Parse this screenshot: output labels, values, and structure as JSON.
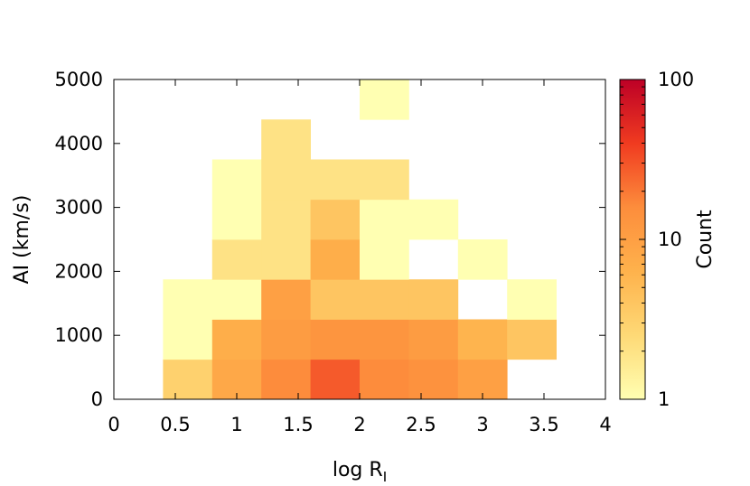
{
  "chart_data": {
    "type": "heatmap",
    "title": "",
    "xlabel_main": "log R",
    "xlabel_sub": "I",
    "ylabel": "AI (km/s)",
    "colorbar_label": "Count",
    "xlim": [
      0,
      4
    ],
    "ylim": [
      0,
      5000
    ],
    "x_ticks": [
      "0",
      "0.5",
      "1",
      "1.5",
      "2",
      "2.5",
      "3",
      "3.5",
      "4"
    ],
    "y_ticks": [
      "0",
      "1000",
      "2000",
      "3000",
      "4000",
      "5000"
    ],
    "colorbar_ticks": [
      "1",
      "10",
      "100"
    ],
    "color_scale": "log",
    "color_range": [
      1,
      100
    ],
    "colormap": [
      "#ffffb2",
      "#fed976",
      "#feb24c",
      "#fd8d3c",
      "#f03b20",
      "#bd0026"
    ],
    "bin_width_x": 0.4,
    "bin_height_y": 625,
    "bins": [
      {
        "x0": 0.4,
        "y0": 0,
        "count": 3
      },
      {
        "x0": 0.8,
        "y0": 0,
        "count": 8
      },
      {
        "x0": 1.2,
        "y0": 0,
        "count": 16
      },
      {
        "x0": 1.6,
        "y0": 0,
        "count": 28
      },
      {
        "x0": 2.0,
        "y0": 0,
        "count": 16
      },
      {
        "x0": 2.4,
        "y0": 0,
        "count": 14
      },
      {
        "x0": 2.8,
        "y0": 0,
        "count": 10
      },
      {
        "x0": 0.4,
        "y0": 625,
        "count": 1
      },
      {
        "x0": 0.8,
        "y0": 625,
        "count": 7
      },
      {
        "x0": 1.2,
        "y0": 625,
        "count": 11
      },
      {
        "x0": 1.6,
        "y0": 625,
        "count": 13
      },
      {
        "x0": 2.0,
        "y0": 625,
        "count": 13
      },
      {
        "x0": 2.4,
        "y0": 625,
        "count": 11
      },
      {
        "x0": 2.8,
        "y0": 625,
        "count": 6
      },
      {
        "x0": 3.2,
        "y0": 625,
        "count": 4
      },
      {
        "x0": 0.4,
        "y0": 1250,
        "count": 1
      },
      {
        "x0": 0.8,
        "y0": 1250,
        "count": 1
      },
      {
        "x0": 1.2,
        "y0": 1250,
        "count": 10
      },
      {
        "x0": 1.6,
        "y0": 1250,
        "count": 4
      },
      {
        "x0": 2.0,
        "y0": 1250,
        "count": 4
      },
      {
        "x0": 2.4,
        "y0": 1250,
        "count": 4
      },
      {
        "x0": 3.2,
        "y0": 1250,
        "count": 1
      },
      {
        "x0": 0.8,
        "y0": 1875,
        "count": 2
      },
      {
        "x0": 1.2,
        "y0": 1875,
        "count": 2
      },
      {
        "x0": 1.6,
        "y0": 1875,
        "count": 7
      },
      {
        "x0": 2.0,
        "y0": 1875,
        "count": 1
      },
      {
        "x0": 2.8,
        "y0": 1875,
        "count": 1
      },
      {
        "x0": 0.8,
        "y0": 2500,
        "count": 1
      },
      {
        "x0": 1.2,
        "y0": 2500,
        "count": 2
      },
      {
        "x0": 1.6,
        "y0": 2500,
        "count": 4
      },
      {
        "x0": 2.0,
        "y0": 2500,
        "count": 1
      },
      {
        "x0": 2.4,
        "y0": 2500,
        "count": 1
      },
      {
        "x0": 0.8,
        "y0": 3125,
        "count": 1
      },
      {
        "x0": 1.2,
        "y0": 3125,
        "count": 2
      },
      {
        "x0": 1.6,
        "y0": 3125,
        "count": 2
      },
      {
        "x0": 2.0,
        "y0": 3125,
        "count": 2
      },
      {
        "x0": 1.2,
        "y0": 3750,
        "count": 2
      },
      {
        "x0": 2.0,
        "y0": 4375,
        "count": 1
      }
    ]
  }
}
